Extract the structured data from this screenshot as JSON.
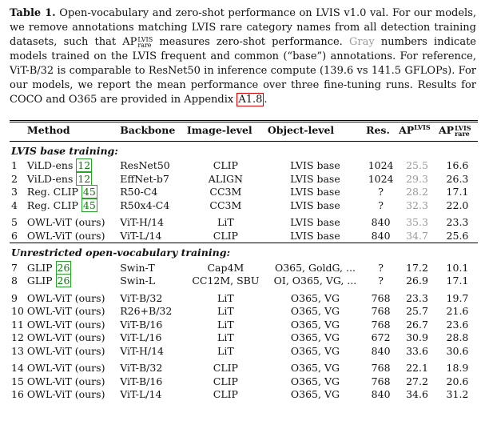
{
  "caption": {
    "label": "Table 1.",
    "text_a": " Open-vocabulary and zero-shot performance on LVIS v1.0 val. For our models, we remove annotations matching LVIS rare category names from all detection training datasets, such that ",
    "ap_base": "AP",
    "ap_sup": "LVIS",
    "ap_sub": "rare",
    "text_b": " measures zero-shot performance. ",
    "gray_word": "Gray",
    "text_c": " numbers indicate models trained on the LVIS frequent and common (“base”) annotations. For reference, ViT-B/32 is comparable to ResNet50 in inference compute (139.6 vs 141.5 GFLOPs). For our models, we report the mean performance over three fine-tuning runs. Results for COCO and O365 are provided in Appendix ",
    "appendix_ref": "A1.8",
    "text_d": "."
  },
  "table": {
    "headers": {
      "method": "Method",
      "backbone": "Backbone",
      "image_level": "Image-level",
      "object_level": "Object-level",
      "res": "Res.",
      "ap_base": "AP",
      "ap_sup": "LVIS",
      "ap_rare_sup": "LVIS",
      "ap_rare_sub": "rare"
    },
    "sections": [
      {
        "title": "LVIS base training:",
        "groups": [
          [
            {
              "n": "1",
              "method": "ViLD-ens",
              "cite": "12",
              "backbone": "ResNet50",
              "image": "CLIP",
              "object": "LVIS base",
              "res": "1024",
              "ap": "25.5",
              "ap_gray": true,
              "ap_rare": "16.6"
            },
            {
              "n": "2",
              "method": "ViLD-ens",
              "cite": "12",
              "backbone": "EffNet-b7",
              "image": "ALIGN",
              "object": "LVIS base",
              "res": "1024",
              "ap": "29.3",
              "ap_gray": true,
              "ap_rare": "26.3"
            },
            {
              "n": "3",
              "method": "Reg. CLIP",
              "cite": "45",
              "backbone": "R50-C4",
              "image": "CC3M",
              "object": "LVIS base",
              "res": "?",
              "ap": "28.2",
              "ap_gray": true,
              "ap_rare": "17.1"
            },
            {
              "n": "4",
              "method": "Reg. CLIP",
              "cite": "45",
              "backbone": "R50x4-C4",
              "image": "CC3M",
              "object": "LVIS base",
              "res": "?",
              "ap": "32.3",
              "ap_gray": true,
              "ap_rare": "22.0"
            }
          ],
          [
            {
              "n": "5",
              "method": "OWL-ViT (ours)",
              "cite": "",
              "backbone": "ViT-H/14",
              "image": "LiT",
              "object": "LVIS base",
              "res": "840",
              "ap": "35.3",
              "ap_gray": true,
              "ap_rare": "23.3"
            },
            {
              "n": "6",
              "method": "OWL-ViT (ours)",
              "cite": "",
              "backbone": "ViT-L/14",
              "image": "CLIP",
              "object": "LVIS base",
              "res": "840",
              "ap": "34.7",
              "ap_gray": true,
              "ap_rare": "25.6"
            }
          ]
        ]
      },
      {
        "title": "Unrestricted open-vocabulary training:",
        "groups": [
          [
            {
              "n": "7",
              "method": "GLIP",
              "cite": "26",
              "backbone": "Swin-T",
              "image": "Cap4M",
              "object": "O365, GoldG, ...",
              "res": "?",
              "ap": "17.2",
              "ap_gray": false,
              "ap_rare": "10.1"
            },
            {
              "n": "8",
              "method": "GLIP",
              "cite": "26",
              "backbone": "Swin-L",
              "image": "CC12M, SBU",
              "object": "OI, O365, VG, ...",
              "res": "?",
              "ap": "26.9",
              "ap_gray": false,
              "ap_rare": "17.1"
            }
          ],
          [
            {
              "n": "9",
              "method": "OWL-ViT (ours)",
              "cite": "",
              "backbone": "ViT-B/32",
              "image": "LiT",
              "object": "O365, VG",
              "res": "768",
              "ap": "23.3",
              "ap_gray": false,
              "ap_rare": "19.7"
            },
            {
              "n": "10",
              "method": "OWL-ViT (ours)",
              "cite": "",
              "backbone": "R26+B/32",
              "image": "LiT",
              "object": "O365, VG",
              "res": "768",
              "ap": "25.7",
              "ap_gray": false,
              "ap_rare": "21.6"
            },
            {
              "n": "11",
              "method": "OWL-ViT (ours)",
              "cite": "",
              "backbone": "ViT-B/16",
              "image": "LiT",
              "object": "O365, VG",
              "res": "768",
              "ap": "26.7",
              "ap_gray": false,
              "ap_rare": "23.6"
            },
            {
              "n": "12",
              "method": "OWL-ViT (ours)",
              "cite": "",
              "backbone": "ViT-L/16",
              "image": "LiT",
              "object": "O365, VG",
              "res": "672",
              "ap": "30.9",
              "ap_gray": false,
              "ap_rare": "28.8"
            },
            {
              "n": "13",
              "method": "OWL-ViT (ours)",
              "cite": "",
              "backbone": "ViT-H/14",
              "image": "LiT",
              "object": "O365, VG",
              "res": "840",
              "ap": "33.6",
              "ap_gray": false,
              "ap_rare": "30.6"
            }
          ],
          [
            {
              "n": "14",
              "method": "OWL-ViT (ours)",
              "cite": "",
              "backbone": "ViT-B/32",
              "image": "CLIP",
              "object": "O365, VG",
              "res": "768",
              "ap": "22.1",
              "ap_gray": false,
              "ap_rare": "18.9"
            },
            {
              "n": "15",
              "method": "OWL-ViT (ours)",
              "cite": "",
              "backbone": "ViT-B/16",
              "image": "CLIP",
              "object": "O365, VG",
              "res": "768",
              "ap": "27.2",
              "ap_gray": false,
              "ap_rare": "20.6"
            },
            {
              "n": "16",
              "method": "OWL-ViT (ours)",
              "cite": "",
              "backbone": "ViT-L/14",
              "image": "CLIP",
              "object": "O365, VG",
              "res": "840",
              "ap": "34.6",
              "ap_gray": false,
              "ap_rare": "31.2"
            }
          ]
        ]
      }
    ]
  },
  "colors": {
    "gray_text": "#9a9a9a",
    "citation_box": "#2ca02c",
    "appendix_box": "#d40000"
  }
}
